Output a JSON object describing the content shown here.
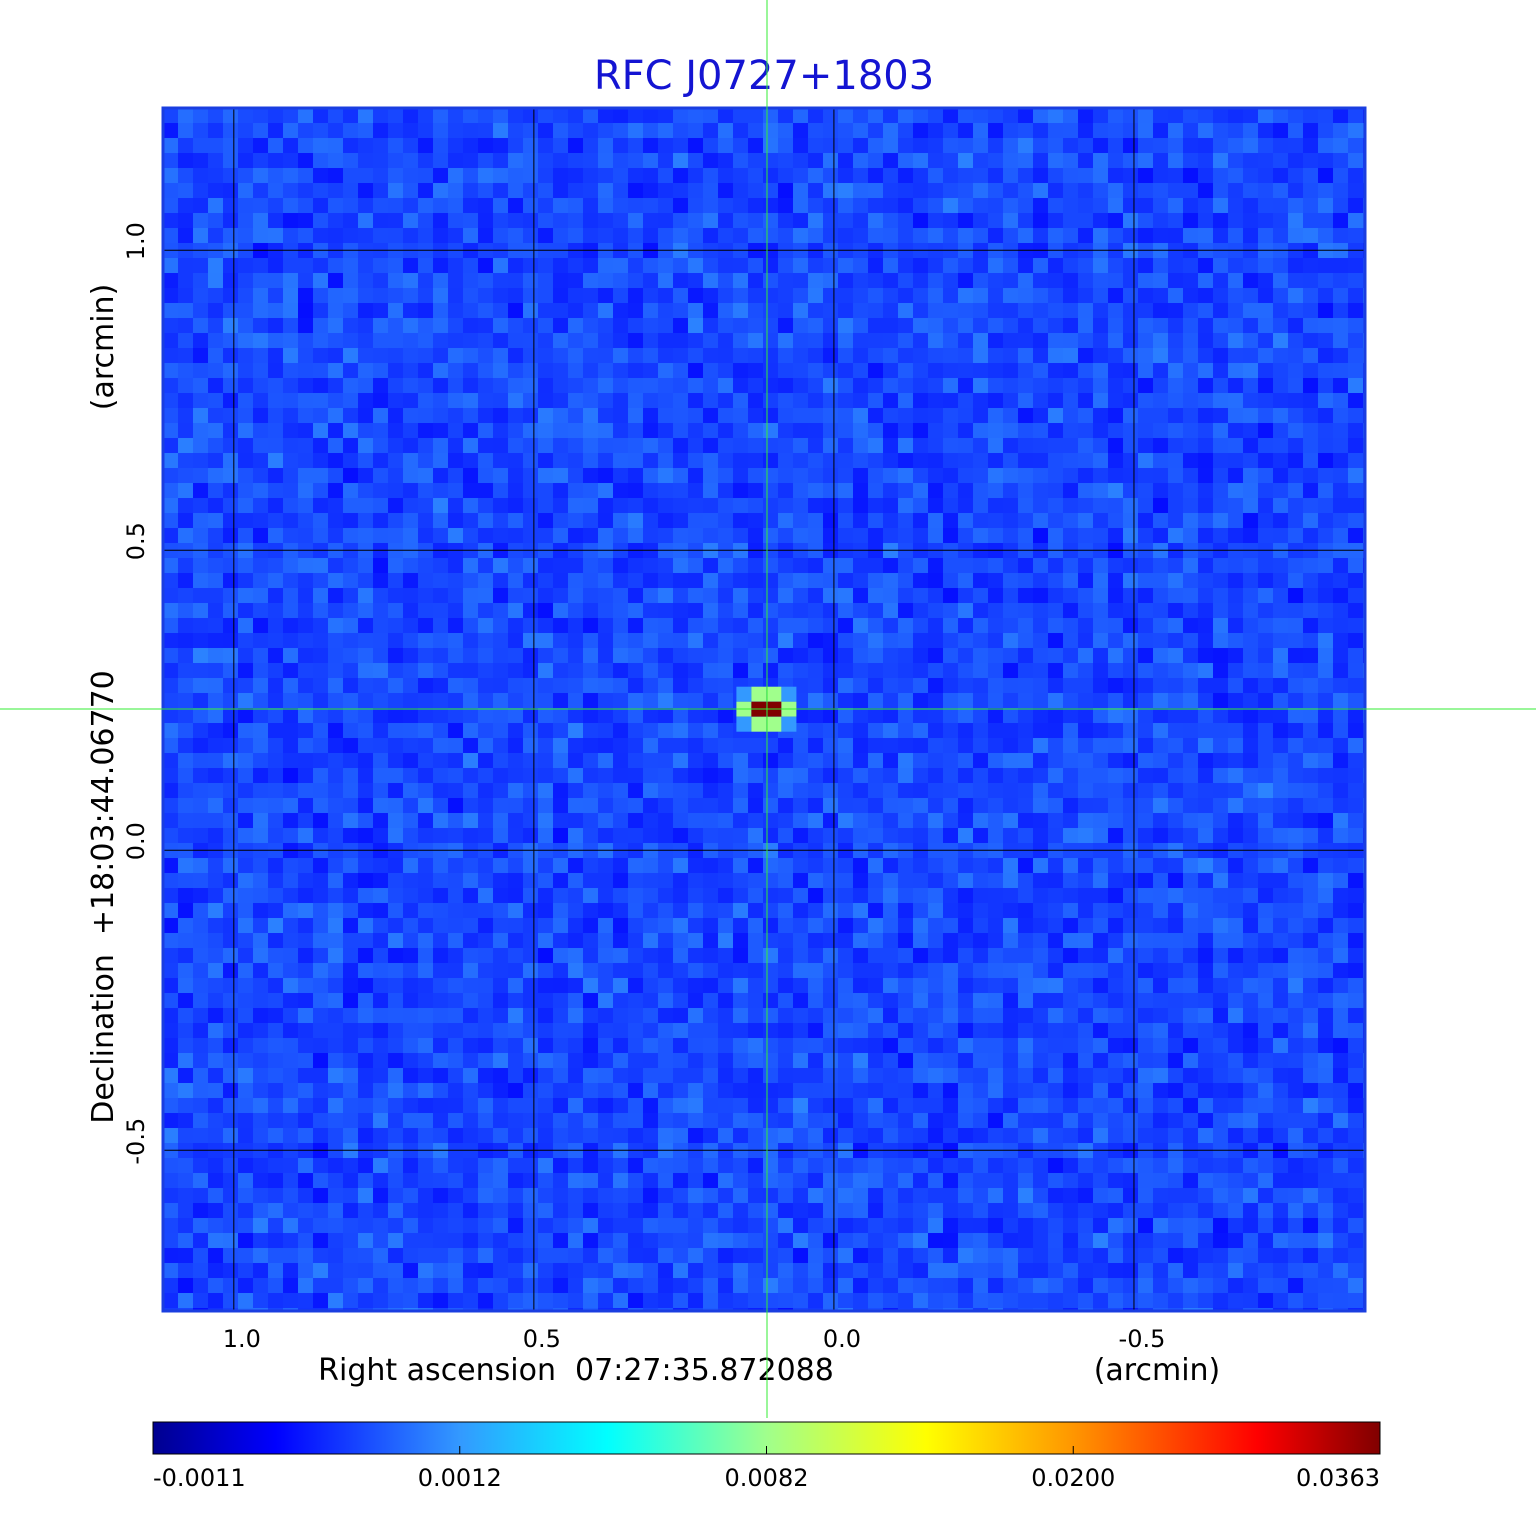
{
  "chart_data": {
    "type": "heatmap",
    "title": "RFC J0727+1803",
    "x_label": "Right ascension  07:27:35.872088",
    "x_unit": "(arcmin)",
    "y_label": "Declination  +18:03:44.06770",
    "y_unit": "(arcmin)",
    "xlim": [
      1.118,
      -0.885
    ],
    "ylim": [
      -0.768,
      1.237
    ],
    "xticks": [
      {
        "value": 1,
        "label": "1.0"
      },
      0.5,
      {
        "value": 0,
        "label": "0.0"
      },
      -0.5
    ],
    "yticks": [
      {
        "value": 1,
        "label": "1.0"
      },
      0.5,
      {
        "value": 0,
        "label": "0.0"
      },
      -0.5
    ],
    "grid": true,
    "colormap": "jet",
    "colorbar_ticks": [
      -0.0011,
      0.0012,
      0.0082,
      {
        "value": 0.02,
        "label": "0.0200"
      },
      0.0363
    ],
    "pixels": {
      "x": [
        0.15,
        0.125,
        0.1,
        0.075
      ],
      "y": [
        0.26,
        0.235,
        0.21
      ],
      "values": [
        [
          0.0012,
          0.0082,
          0.0082,
          0.0012
        ],
        [
          0.0082,
          0.0363,
          0.0363,
          0.0082
        ],
        [
          0.0012,
          0.0082,
          0.0082,
          0.0012
        ]
      ]
    }
  }
}
